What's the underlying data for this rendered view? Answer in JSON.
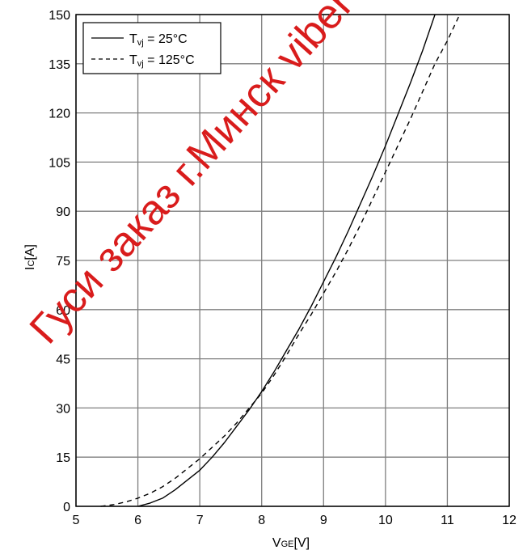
{
  "chart_data": {
    "type": "line",
    "title": "",
    "xlabel": {
      "main": "V",
      "sub": "GE",
      "unit": "[V]"
    },
    "ylabel": {
      "main": "I",
      "sub": "C",
      "unit": "[A]"
    },
    "xlim": [
      5,
      12
    ],
    "ylim": [
      0,
      150
    ],
    "xticks": [
      "5",
      "6",
      "7",
      "8",
      "9",
      "10",
      "11",
      "12"
    ],
    "yticks": [
      "0",
      "15",
      "30",
      "45",
      "60",
      "75",
      "90",
      "105",
      "120",
      "135",
      "150"
    ],
    "grid": true,
    "legend_position": "top-left",
    "series": [
      {
        "name": "T_vj = 25°C",
        "legend": {
          "pre": "T",
          "sub": "vj",
          "post": " = 25°C"
        },
        "style": "solid",
        "x": [
          6.0,
          6.2,
          6.4,
          6.6,
          6.8,
          7.0,
          7.2,
          7.4,
          7.6,
          7.8,
          8.0,
          8.2,
          8.4,
          8.6,
          8.8,
          9.0,
          9.2,
          9.4,
          9.6,
          9.8,
          10.0,
          10.2,
          10.4,
          10.6,
          10.8
        ],
        "y": [
          0,
          1,
          2.5,
          5,
          8,
          11,
          15,
          19.5,
          24.5,
          29.5,
          35,
          41,
          47.5,
          54,
          61,
          68.5,
          76,
          84,
          92.5,
          101,
          110,
          119.5,
          129,
          139,
          150
        ]
      },
      {
        "name": "T_vj = 125°C",
        "legend": {
          "pre": "T",
          "sub": "vj",
          "post": " = 125°C"
        },
        "style": "dashed",
        "x": [
          5.4,
          5.6,
          5.8,
          6.0,
          6.2,
          6.4,
          6.6,
          6.8,
          7.0,
          7.2,
          7.4,
          7.6,
          7.8,
          8.0,
          8.2,
          8.4,
          8.6,
          8.8,
          9.0,
          9.2,
          9.4,
          9.6,
          9.8,
          10.0,
          10.2,
          10.4,
          10.6,
          10.8,
          11.0,
          11.2
        ],
        "y": [
          0,
          0.5,
          1.3,
          2.5,
          4,
          6,
          8.5,
          11.5,
          14.5,
          18,
          21.5,
          25.5,
          30,
          34.5,
          40,
          46,
          52.5,
          58.5,
          65,
          71.5,
          78.5,
          86,
          94,
          102,
          110,
          118,
          126.5,
          135,
          142,
          150
        ]
      }
    ]
  },
  "watermark": {
    "text": "Гуси заказ г.Минск viber m",
    "color": "#d91c1c"
  }
}
